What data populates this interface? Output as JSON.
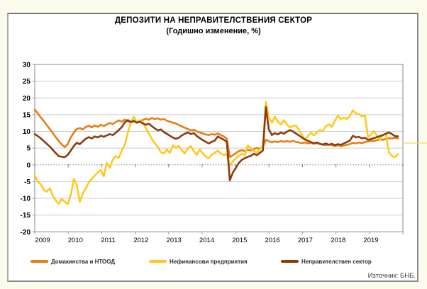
{
  "page": {
    "title": "ДЕПОЗИТИ НА НЕПРАВИТЕЛСТВЕНИЯ СЕКТОР",
    "subtitle": "(Годишно изменение, %)",
    "source": "Източник: БНБ."
  },
  "colors": {
    "households": "#e87d12",
    "corporates": "#ffc91e",
    "total": "#8e3b0e",
    "grid": "#cccccc",
    "axis": "#9c9c9c",
    "zero_line": "#808080",
    "tick_label": "#000000",
    "page_bg": "#fbfbec",
    "panel_bg": "#ffffff",
    "panel_border": "#8b8b93",
    "stray_line_yellow": "#efe45c"
  },
  "chart_data": {
    "type": "line",
    "title": "ДЕПОЗИТИ НА НЕПРАВИТЕЛСТВЕНИЯ СЕКТОР",
    "subtitle": "(Годишно изменение, %)",
    "xlabel": "",
    "ylabel": "",
    "ylim": [
      -20,
      30
    ],
    "y_ticks": [
      30,
      25,
      20,
      15,
      10,
      5,
      0,
      -5,
      -10,
      -15,
      -20
    ],
    "x_tick_labels": [
      "2009",
      "2010",
      "2011",
      "2012",
      "2013",
      "2014",
      "2015",
      "2016",
      "2017",
      "2018",
      "2019"
    ],
    "frequency": "monthly",
    "x_start": "2009-01",
    "x_end": "2019-02",
    "grid": "horizontal",
    "legend_position": "bottom",
    "series": [
      {
        "name": "Домакинства и НТООД",
        "color": "#e87d12",
        "values": [
          16.5,
          15.4,
          14.2,
          13.1,
          11.9,
          10.7,
          9.5,
          8.3,
          7.1,
          6.1,
          5.3,
          6.2,
          8.2,
          9.6,
          10.7,
          11.0,
          10.6,
          11.3,
          11.7,
          11.2,
          11.8,
          11.4,
          12.0,
          11.6,
          12.1,
          12.5,
          12.2,
          12.8,
          13.3,
          12.9,
          13.5,
          13.1,
          12.7,
          13.2,
          12.9,
          13.1,
          13.4,
          13.8,
          13.5,
          14.0,
          13.7,
          13.9,
          13.5,
          13.7,
          13.2,
          12.9,
          12.6,
          12.4,
          11.9,
          11.5,
          11.1,
          10.7,
          10.3,
          10.5,
          10.0,
          9.7,
          9.4,
          9.1,
          8.9,
          9.2,
          9.0,
          9.4,
          8.9,
          8.5,
          7.8,
          2.3,
          2.9,
          3.5,
          4.1,
          4.4,
          4.1,
          4.5,
          4.3,
          4.7,
          5.1,
          4.8,
          5.4,
          7.5,
          7.1,
          6.7,
          7.0,
          6.8,
          7.1,
          6.9,
          7.1,
          6.9,
          7.2,
          6.9,
          6.7,
          6.5,
          6.7,
          6.4,
          6.6,
          6.3,
          6.5,
          6.2,
          6.0,
          5.9,
          6.1,
          5.9,
          5.6,
          5.9,
          5.6,
          5.8,
          6.0,
          6.2,
          6.6,
          6.4,
          6.7,
          6.5,
          6.8,
          7.0,
          7.2,
          7.1,
          7.4,
          7.6,
          7.5,
          7.7,
          8.0,
          7.9,
          8.1,
          7.9
        ]
      },
      {
        "name": "Нефинансови предприятия",
        "color": "#ffc91e",
        "values": [
          -3.0,
          -5.0,
          -5.8,
          -7.4,
          -8.0,
          -7.0,
          -9.2,
          -10.6,
          -11.6,
          -10.2,
          -11.0,
          -11.7,
          -9.0,
          -4.2,
          -6.0,
          -11.0,
          -8.6,
          -7.0,
          -5.2,
          -4.2,
          -3.2,
          -2.2,
          -1.6,
          -3.4,
          0.6,
          -0.9,
          1.6,
          2.6,
          2.1,
          4.3,
          6.0,
          9.6,
          12.6,
          14.4,
          12.8,
          13.3,
          12.8,
          11.0,
          9.4,
          7.8,
          6.4,
          5.4,
          3.8,
          3.4,
          4.6,
          3.6,
          5.8,
          5.1,
          5.7,
          4.4,
          3.4,
          5.0,
          5.6,
          4.1,
          3.0,
          4.6,
          3.4,
          2.5,
          2.0,
          3.1,
          3.6,
          4.3,
          3.4,
          2.9,
          3.3,
          -0.3,
          1.1,
          1.9,
          2.7,
          3.3,
          2.9,
          5.8,
          5.0,
          4.1,
          3.6,
          4.6,
          5.6,
          18.8,
          14.2,
          12.6,
          14.4,
          12.9,
          12.1,
          13.4,
          12.1,
          11.2,
          11.6,
          11.8,
          10.4,
          9.0,
          7.5,
          8.6,
          9.6,
          8.8,
          9.7,
          10.4,
          10.1,
          11.6,
          12.1,
          11.4,
          13.1,
          14.8,
          13.6,
          14.1,
          13.7,
          14.6,
          16.3,
          15.4,
          15.1,
          14.5,
          14.8,
          8.3,
          9.1,
          10.1,
          8.7,
          7.6,
          8.9,
          9.4,
          3.7,
          2.7,
          2.3,
          3.2
        ]
      },
      {
        "name": "Неправителствен сектор",
        "color": "#8e3b0e",
        "values": [
          9.2,
          8.6,
          7.9,
          7.1,
          6.3,
          5.5,
          4.5,
          3.5,
          2.6,
          2.4,
          2.3,
          3.0,
          4.3,
          5.6,
          6.6,
          6.2,
          7.0,
          7.8,
          8.3,
          7.9,
          8.5,
          8.2,
          8.7,
          8.4,
          8.8,
          9.2,
          8.9,
          9.6,
          10.4,
          11.3,
          12.7,
          13.4,
          12.8,
          13.1,
          12.6,
          12.9,
          12.4,
          12.0,
          12.3,
          11.6,
          10.9,
          10.3,
          10.6,
          9.8,
          9.3,
          8.7,
          8.2,
          7.8,
          8.1,
          8.8,
          9.3,
          9.7,
          9.2,
          9.5,
          8.6,
          8.0,
          7.4,
          6.9,
          6.4,
          6.9,
          7.3,
          8.5,
          8.0,
          7.5,
          6.9,
          -4.6,
          -2.3,
          -0.9,
          0.6,
          1.5,
          2.0,
          2.4,
          2.7,
          3.3,
          2.9,
          3.6,
          4.3,
          17.3,
          10.6,
          8.9,
          9.5,
          9.1,
          9.7,
          9.3,
          9.9,
          10.4,
          10.0,
          9.4,
          8.8,
          8.2,
          7.6,
          7.2,
          6.8,
          6.5,
          6.7,
          6.3,
          6.1,
          6.4,
          6.0,
          6.3,
          5.9,
          6.2,
          6.0,
          6.4,
          6.8,
          7.3,
          8.7,
          8.2,
          8.4,
          7.9,
          8.1,
          7.5,
          7.7,
          8.0,
          8.3,
          8.6,
          8.9,
          9.3,
          9.7,
          9.2,
          8.6,
          8.5
        ]
      }
    ]
  }
}
